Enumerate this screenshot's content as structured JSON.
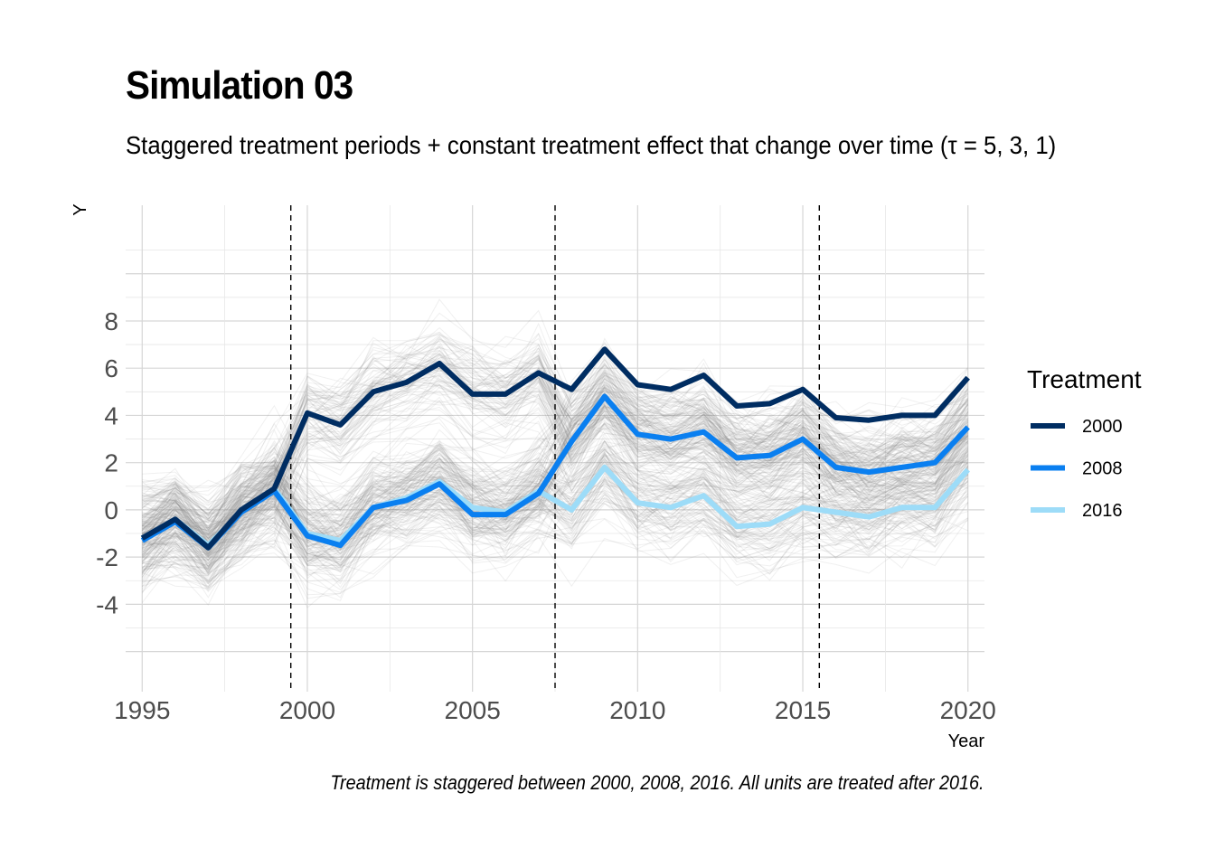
{
  "title": "Simulation 03",
  "subtitle": "Staggered treatment periods + constant treatment effect that change over time (τ = 5, 3, 1)",
  "caption": "Treatment is staggered between 2000, 2008, 2016. All units are treated after 2016.",
  "chart_data": {
    "type": "line",
    "xlabel": "Year",
    "ylabel": "Y",
    "x": [
      1995,
      1996,
      1997,
      1998,
      1999,
      2000,
      2001,
      2002,
      2003,
      2004,
      2005,
      2006,
      2007,
      2008,
      2009,
      2010,
      2011,
      2012,
      2013,
      2014,
      2015,
      2016,
      2017,
      2018,
      2019,
      2020
    ],
    "xlim": [
      1994.5,
      2020.5
    ],
    "ylim": [
      -7.7,
      12.9
    ],
    "x_ticks": [
      1995,
      2000,
      2005,
      2010,
      2015,
      2020
    ],
    "y_ticks": [
      -4,
      -2,
      0,
      2,
      4,
      6,
      8
    ],
    "x_tick_labels": [
      "1995",
      "2000",
      "2005",
      "2010",
      "2015",
      "2020"
    ],
    "y_tick_labels": [
      "-4",
      "-2",
      "0",
      "2",
      "4",
      "6",
      "8"
    ],
    "treatment_lines": [
      1999.5,
      2007.5,
      2015.5
    ],
    "grid": true,
    "background_lines": "many individual unit trajectories in light grey",
    "legend": {
      "title": "Treatment",
      "position": "right"
    },
    "series": [
      {
        "name": "2000",
        "color": "#002d62",
        "values": [
          -1.2,
          -0.4,
          -1.6,
          0.0,
          0.9,
          4.1,
          3.6,
          5.0,
          5.4,
          6.2,
          4.9,
          4.9,
          5.8,
          5.1,
          6.8,
          5.3,
          5.1,
          5.7,
          4.4,
          4.5,
          5.1,
          3.9,
          3.8,
          4.0,
          4.0,
          5.6
        ]
      },
      {
        "name": "2008",
        "color": "#0a7ff0",
        "values": [
          -1.3,
          -0.5,
          -1.6,
          -0.1,
          0.8,
          -1.1,
          -1.5,
          0.1,
          0.4,
          1.1,
          -0.2,
          -0.2,
          0.7,
          2.9,
          4.8,
          3.2,
          3.0,
          3.3,
          2.2,
          2.3,
          3.0,
          1.8,
          1.6,
          1.8,
          2.0,
          3.5
        ]
      },
      {
        "name": "2016",
        "color": "#9ddcf8",
        "values": [
          -1.2,
          -0.4,
          -1.5,
          -0.1,
          0.9,
          -1.0,
          -1.3,
          0.1,
          0.5,
          1.2,
          0.1,
          -0.1,
          0.8,
          0.0,
          1.8,
          0.3,
          0.1,
          0.6,
          -0.7,
          -0.6,
          0.1,
          -0.1,
          -0.3,
          0.1,
          0.1,
          1.7
        ]
      }
    ]
  }
}
